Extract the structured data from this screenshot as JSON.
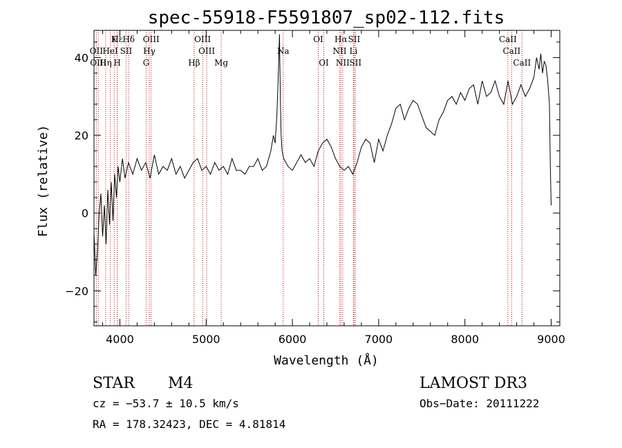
{
  "chart_data": {
    "type": "line",
    "title": "spec-55918-F5591807_sp02-112.fits",
    "xlabel": "Wavelength (Å)",
    "ylabel": "Flux (relative)",
    "xlim": [
      3700,
      9100
    ],
    "ylim": [
      -29,
      47
    ],
    "x_ticks": [
      4000,
      5000,
      6000,
      7000,
      8000,
      9000
    ],
    "y_ticks": [
      -20,
      0,
      20,
      40
    ],
    "x_tick_labels": [
      "4000",
      "5000",
      "6000",
      "7000",
      "8000",
      "9000"
    ],
    "y_tick_labels": [
      "−20",
      "0",
      "20",
      "40"
    ],
    "grid": false,
    "legend": "none",
    "series": [
      {
        "name": "spectrum",
        "x": [
          3700,
          3720,
          3740,
          3760,
          3780,
          3800,
          3820,
          3840,
          3860,
          3880,
          3900,
          3920,
          3940,
          3960,
          3980,
          4000,
          4030,
          4060,
          4100,
          4150,
          4200,
          4250,
          4300,
          4350,
          4400,
          4450,
          4500,
          4550,
          4600,
          4650,
          4700,
          4750,
          4800,
          4850,
          4900,
          4950,
          5000,
          5050,
          5100,
          5150,
          5200,
          5250,
          5300,
          5350,
          5400,
          5450,
          5500,
          5550,
          5600,
          5650,
          5700,
          5750,
          5780,
          5800,
          5820,
          5840,
          5850,
          5860,
          5870,
          5880,
          5900,
          5950,
          6000,
          6050,
          6100,
          6150,
          6200,
          6250,
          6300,
          6350,
          6400,
          6450,
          6500,
          6550,
          6600,
          6650,
          6700,
          6750,
          6800,
          6850,
          6900,
          6950,
          7000,
          7050,
          7100,
          7150,
          7200,
          7250,
          7300,
          7350,
          7400,
          7450,
          7500,
          7550,
          7600,
          7650,
          7700,
          7750,
          7800,
          7850,
          7900,
          7950,
          8000,
          8050,
          8100,
          8150,
          8200,
          8250,
          8300,
          8350,
          8400,
          8450,
          8500,
          8550,
          8600,
          8650,
          8700,
          8750,
          8800,
          8830,
          8860,
          8880,
          8900,
          8920,
          8940,
          8960,
          8980,
          8990,
          9000
        ],
        "values": [
          -5,
          -16,
          -10,
          0,
          5,
          -6,
          2,
          -8,
          6,
          -3,
          8,
          -2,
          10,
          4,
          12,
          8,
          14,
          9,
          13,
          10,
          14,
          11,
          13,
          9,
          15,
          10,
          12,
          11,
          14,
          10,
          12,
          9,
          11,
          13,
          14,
          11,
          12,
          10,
          13,
          11,
          12,
          10,
          14,
          11,
          11,
          10,
          12,
          12,
          14,
          11,
          12,
          16,
          20,
          18,
          25,
          38,
          46,
          30,
          20,
          16,
          14,
          12,
          11,
          13,
          15,
          13,
          14,
          12,
          16,
          18,
          19,
          17,
          14,
          12,
          11,
          12,
          10,
          13,
          17,
          19,
          18,
          13,
          19,
          16,
          20,
          23,
          27,
          28,
          24,
          27,
          29,
          28,
          25,
          22,
          21,
          20,
          24,
          26,
          29,
          30,
          28,
          31,
          29,
          32,
          33,
          28,
          34,
          30,
          31,
          34,
          30,
          28,
          34,
          28,
          30,
          33,
          30,
          32,
          35,
          40,
          37,
          41,
          36,
          39,
          38,
          34,
          28,
          12,
          2
        ]
      }
    ],
    "lines": [
      {
        "label": "Hε",
        "x": 3970,
        "row": 0
      },
      {
        "label": "K",
        "x": 3934,
        "row": 0
      },
      {
        "label": "Hδ",
        "x": 4102,
        "row": 0
      },
      {
        "label": "OIII",
        "x": 4363,
        "row": 0
      },
      {
        "label": "OIII",
        "x": 4959,
        "row": 0
      },
      {
        "label": "OI",
        "x": 6300,
        "row": 0
      },
      {
        "label": "Hα",
        "x": 6563,
        "row": 0
      },
      {
        "label": "SII",
        "x": 6716,
        "row": 0
      },
      {
        "label": "CaII",
        "x": 8498,
        "row": 0
      },
      {
        "label": "OII",
        "x": 3727,
        "row": 1
      },
      {
        "label": "HeI",
        "x": 3889,
        "row": 1
      },
      {
        "label": "SII",
        "x": 4072,
        "row": 1
      },
      {
        "label": "Hγ",
        "x": 4341,
        "row": 1
      },
      {
        "label": "OIII",
        "x": 5007,
        "row": 1
      },
      {
        "label": "Na",
        "x": 5893,
        "row": 1
      },
      {
        "label": "NII",
        "x": 6548,
        "row": 1
      },
      {
        "label": "Li",
        "x": 6708,
        "row": 1
      },
      {
        "label": "CaII",
        "x": 8542,
        "row": 1
      },
      {
        "label": "OIII",
        "x": 3750,
        "row": 2
      },
      {
        "label": "Hη",
        "x": 3835,
        "row": 2
      },
      {
        "label": "H",
        "x": 3969,
        "row": 2
      },
      {
        "label": "G",
        "x": 4305,
        "row": 2
      },
      {
        "label": "Hβ",
        "x": 4861,
        "row": 2
      },
      {
        "label": "Mg",
        "x": 5175,
        "row": 2
      },
      {
        "label": "OI",
        "x": 6364,
        "row": 2
      },
      {
        "label": "NII",
        "x": 6583,
        "row": 2
      },
      {
        "label": "SII",
        "x": 6731,
        "row": 2
      },
      {
        "label": "CaII",
        "x": 8662,
        "row": 2
      }
    ]
  },
  "info": {
    "object_class": "STAR",
    "subclass": "M4",
    "survey": "LAMOST DR3",
    "cz": "cz = −53.7 ± 10.5 km/s",
    "obs_date": "Obs−Date: 20111222",
    "coords": "RA = 178.32423, DEC =    4.81814"
  }
}
